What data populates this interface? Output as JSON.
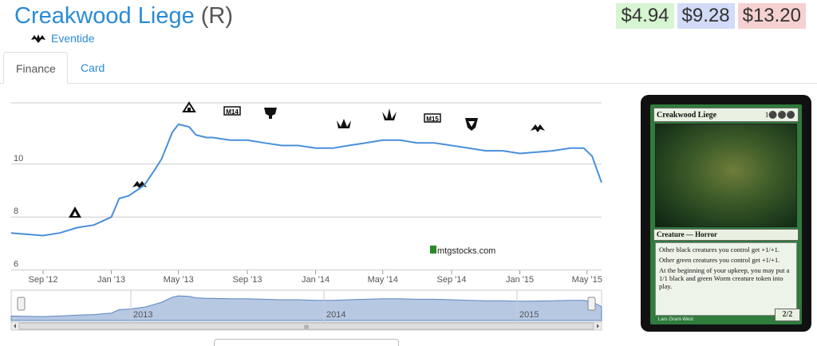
{
  "card": {
    "name": "Creakwood Liege",
    "rarity": "(R)",
    "set_name": "Eventide"
  },
  "prices": {
    "low": "$4.94",
    "mid": "$9.28",
    "high": "$13.20"
  },
  "tabs": [
    {
      "label": "Finance",
      "active": true
    },
    {
      "label": "Card",
      "active": false
    }
  ],
  "chart_data": {
    "type": "line",
    "title": "",
    "xlabel": "",
    "ylabel": "",
    "ylim": [
      5.9,
      12.4
    ],
    "y_ticks": [
      6,
      8,
      10
    ],
    "x_ticks": [
      "Sep '12",
      "Jan '13",
      "May '13",
      "Sep '13",
      "Jan '14",
      "May '14",
      "Sep '14",
      "Jan '15",
      "May '15"
    ],
    "x_range": [
      "2012-07-06",
      "2015-05-27"
    ],
    "grid": true,
    "series": [
      {
        "x": [
          "2012-07-06",
          "2012-08-01",
          "2012-09-01",
          "2012-10-01",
          "2012-11-01",
          "2012-12-01",
          "2013-01-01",
          "2013-01-15",
          "2013-02-01",
          "2013-02-15",
          "2013-03-01",
          "2013-03-20",
          "2013-04-01",
          "2013-04-20",
          "2013-05-01",
          "2013-05-20",
          "2013-06-01",
          "2013-06-20",
          "2013-07-01",
          "2013-08-01",
          "2013-09-01",
          "2013-10-01",
          "2013-11-01",
          "2013-12-01",
          "2014-01-01",
          "2014-02-01",
          "2014-03-01",
          "2014-04-01",
          "2014-05-01",
          "2014-06-01",
          "2014-07-01",
          "2014-08-01",
          "2014-09-01",
          "2014-10-01",
          "2014-11-01",
          "2014-12-01",
          "2015-01-01",
          "2015-02-01",
          "2015-03-01",
          "2015-04-01",
          "2015-04-25",
          "2015-05-10",
          "2015-05-27"
        ],
        "values": [
          7.4,
          7.35,
          7.3,
          7.4,
          7.6,
          7.7,
          8.0,
          8.7,
          8.8,
          9.0,
          9.2,
          9.8,
          10.2,
          11.2,
          11.5,
          11.4,
          11.1,
          11.0,
          11.0,
          10.9,
          10.9,
          10.8,
          10.7,
          10.7,
          10.6,
          10.6,
          10.7,
          10.8,
          10.9,
          10.9,
          10.8,
          10.8,
          10.7,
          10.6,
          10.5,
          10.5,
          10.4,
          10.45,
          10.5,
          10.6,
          10.6,
          10.3,
          9.3
        ]
      }
    ],
    "watermark": "mtgstocks.com",
    "navigator_years": [
      "2013",
      "2014",
      "2015"
    ]
  },
  "card_image": {
    "name": "Creakwood Liege",
    "cost": "1⚫⚫⚫",
    "type_line": "Creature — Horror",
    "rules": [
      "Other black creatures you control get +1/+1.",
      "Other green creatures you control get +1/+1.",
      "At the beginning of your upkeep, you may put a 1/1 black and green Worm creature token into play."
    ],
    "pt": "2/2",
    "artist": "Lars Grant-West"
  },
  "colors": {
    "link": "#2a8bd5",
    "line": "#4a8fdb",
    "nav_fill": "#b7c8e3"
  }
}
